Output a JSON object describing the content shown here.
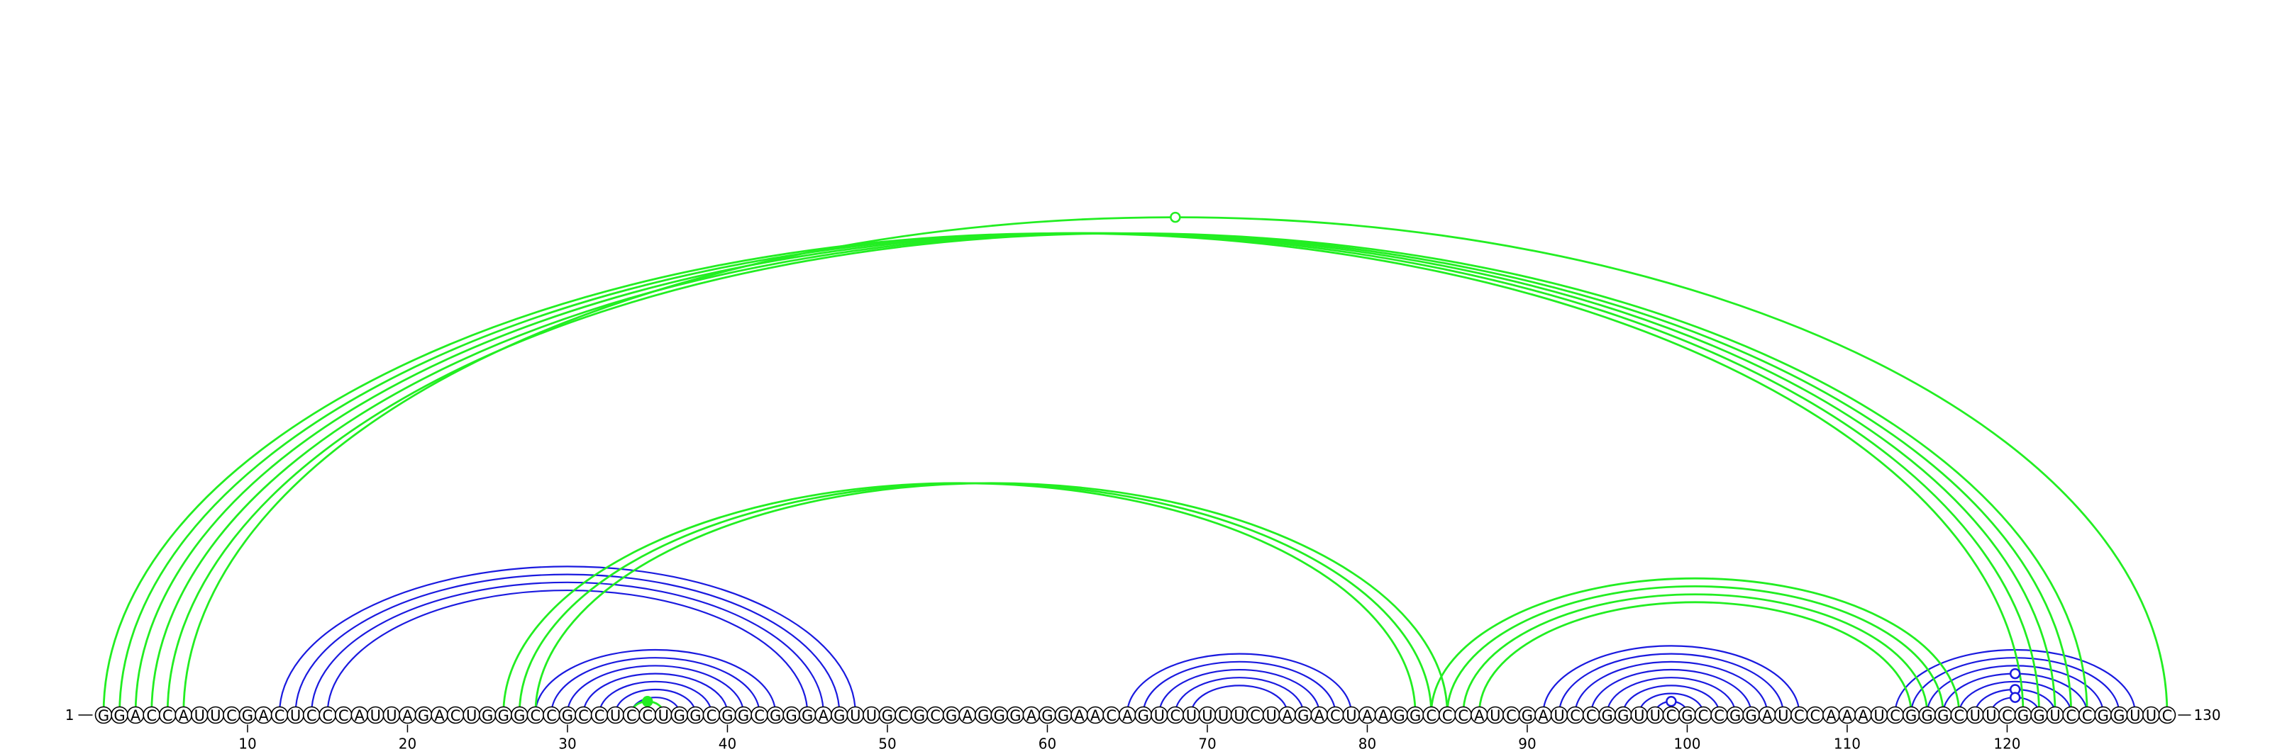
{
  "sequence": "GGACCAUUCGACUCCCAUUAGACUGGGCCGCCUCCUGGCGGCGGGAGUUGCGCGAGGGAGGAACAGUCUUUUCUAGACUAAGGCCCAUCGAUCCGGUUCGCCGGAUCCAAAUCGGGCUUCGGUCCGGUUC",
  "length": 130,
  "start_label": "1",
  "end_label": "130",
  "tick_labels": [
    "10",
    "20",
    "30",
    "40",
    "50",
    "60",
    "70",
    "80",
    "90",
    "100",
    "110",
    "120"
  ],
  "colors": {
    "blue": "#1a1adf",
    "green": "#22ee22"
  },
  "helices": [
    {
      "color": "blue",
      "pairs": [
        [
          12,
          48
        ],
        [
          13,
          47
        ],
        [
          14,
          46
        ],
        [
          15,
          45
        ]
      ]
    },
    {
      "color": "blue",
      "pairs": [
        [
          28,
          43
        ],
        [
          29,
          42
        ],
        [
          30,
          41
        ],
        [
          31,
          40
        ],
        [
          32,
          39
        ],
        [
          33,
          38
        ],
        [
          34,
          37
        ]
      ]
    },
    {
      "color": "blue",
      "pairs": [
        [
          65,
          79
        ],
        [
          66,
          78
        ],
        [
          67,
          77
        ],
        [
          68,
          76
        ],
        [
          69,
          75
        ]
      ]
    },
    {
      "color": "blue",
      "pairs": [
        [
          91,
          107
        ],
        [
          92,
          106
        ],
        [
          93,
          105
        ],
        [
          94,
          104
        ],
        [
          95,
          103
        ],
        [
          96,
          102
        ],
        [
          97,
          101
        ],
        [
          98,
          100
        ]
      ]
    },
    {
      "color": "blue",
      "pairs": [
        [
          113,
          128
        ],
        [
          114,
          127
        ],
        [
          115,
          126
        ],
        [
          116,
          125
        ],
        [
          117,
          124
        ],
        [
          118,
          123
        ],
        [
          119,
          122
        ]
      ]
    },
    {
      "color": "green",
      "pairs": [
        [
          1,
          121
        ],
        [
          2,
          122
        ],
        [
          3,
          123
        ],
        [
          4,
          124
        ],
        [
          5,
          125
        ],
        [
          6,
          130
        ]
      ]
    },
    {
      "color": "green",
      "pairs": [
        [
          26,
          83
        ],
        [
          27,
          84
        ],
        [
          28,
          85
        ]
      ]
    },
    {
      "color": "green",
      "pairs": [
        [
          84,
          117
        ],
        [
          85,
          116
        ],
        [
          86,
          115
        ],
        [
          87,
          114
        ]
      ]
    },
    {
      "color": "green",
      "pairs": [
        [
          34,
          36
        ]
      ]
    }
  ],
  "markers": [
    {
      "color": "green",
      "at_pair": [
        6,
        130
      ],
      "style": "open"
    },
    {
      "color": "green",
      "at_pair": [
        34,
        36
      ],
      "style": "filled"
    },
    {
      "color": "blue",
      "at_pair": [
        116,
        125
      ],
      "style": "open"
    },
    {
      "color": "blue",
      "at_pair": [
        118,
        123
      ],
      "style": "open"
    },
    {
      "color": "blue",
      "at_pair": [
        119,
        122
      ],
      "style": "open"
    },
    {
      "color": "blue",
      "at_pair": [
        98,
        100
      ],
      "style": "open"
    }
  ]
}
